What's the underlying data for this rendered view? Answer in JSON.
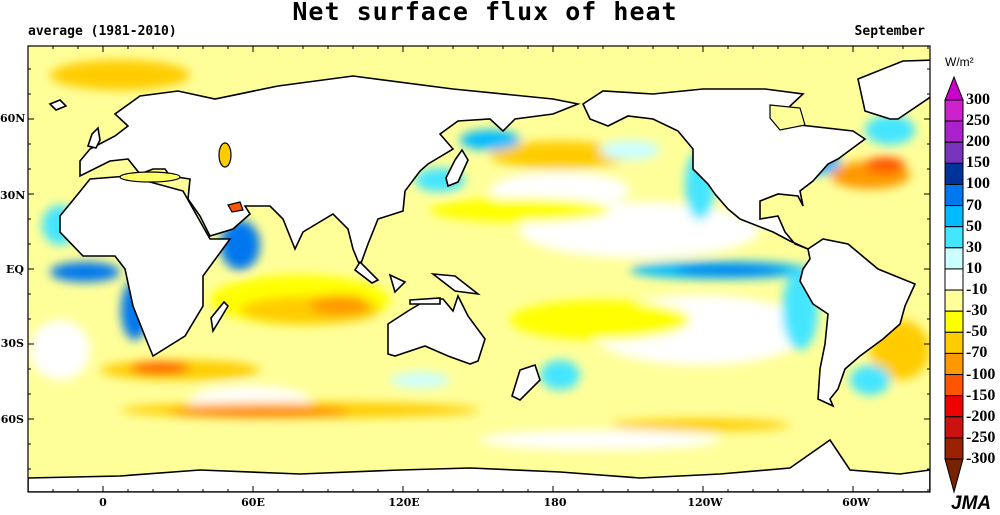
{
  "header": {
    "title": "Net surface flux of heat",
    "period": "average (1981-2010)",
    "month": "September"
  },
  "axes": {
    "lat_labels": [
      "60N",
      "30N",
      "EQ",
      "30S",
      "60S"
    ],
    "lon_labels": [
      "0",
      "60E",
      "120E",
      "180",
      "120W",
      "60W"
    ]
  },
  "colorbar": {
    "unit": "W/m²",
    "labels": [
      "300",
      "250",
      "200",
      "150",
      "100",
      "70",
      "50",
      "30",
      "10",
      "-10",
      "-30",
      "-50",
      "-70",
      "-100",
      "-150",
      "-200",
      "-250",
      "-300"
    ],
    "top_triangle": "#cc00cc",
    "colors": [
      "#cc22cc",
      "#aa22cc",
      "#7733bb",
      "#003399",
      "#0077ee",
      "#00bbff",
      "#44e5ff",
      "#ccffff",
      "#ffffff",
      "#ffff99",
      "#ffff00",
      "#ffcc00",
      "#ff9900",
      "#ff5500",
      "#ee0000",
      "#cc1111",
      "#992200"
    ],
    "bottom_triangle": "#772200"
  },
  "credit": "JMA"
}
